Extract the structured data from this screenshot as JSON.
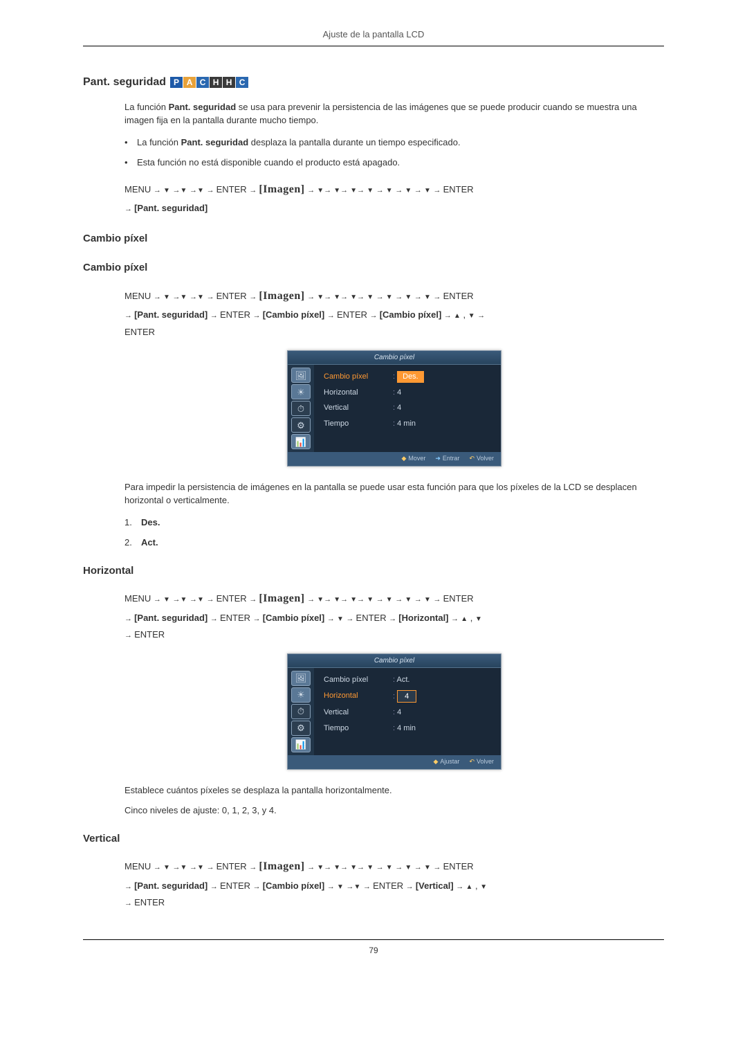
{
  "page": {
    "header": "Ajuste de la pantalla LCD",
    "number": "79"
  },
  "badges": {
    "items": [
      "P",
      "A",
      "C",
      "H",
      "H",
      "C"
    ],
    "colors": [
      "#1e5aa8",
      "#e8a23a",
      "#2a68b0",
      "#3a3a3a",
      "#3a3a3a",
      "#2a68b0"
    ]
  },
  "sec_pant": {
    "title": "Pant. seguridad",
    "intro": "La función Pant. seguridad se usa para prevenir la persistencia de las imágenes que se puede producir cuando se muestra una imagen fija en la pantalla durante mucho tiempo.",
    "intro_bold": "Pant. seguridad",
    "bullet1_pre": "La función ",
    "bullet1_bold": "Pant. seguridad",
    "bullet1_post": " desplaza la pantalla durante un tiempo especificado.",
    "bullet2": "Esta función no está disponible cuando el producto está apagado.",
    "nav": {
      "menu": "MENU",
      "enter": "ENTER",
      "imagen": "[Imagen]",
      "pant": "[Pant. seguridad]"
    }
  },
  "sec_cambio": {
    "title1": "Cambio píxel",
    "title2": "Cambio píxel",
    "nav": {
      "menu": "MENU",
      "enter": "ENTER",
      "imagen": "[Imagen]",
      "pant": "[Pant. seguridad]",
      "cambio1": "[Cambio píxel]",
      "cambio2": "[Cambio píxel]"
    },
    "osd": {
      "title": "Cambio píxel",
      "rows": [
        {
          "lbl": "Cambio píxel",
          "val": "Des.",
          "hl": true,
          "sel": true
        },
        {
          "lbl": "Horizontal",
          "val": "4"
        },
        {
          "lbl": "Vertical",
          "val": "4"
        },
        {
          "lbl": "Tiempo",
          "val": "4 min"
        }
      ],
      "foot": {
        "move": "Mover",
        "enter": "Entrar",
        "return": "Volver"
      }
    },
    "after": "Para impedir la persistencia de imágenes en la pantalla se puede usar esta función para que los píxeles de la LCD se desplacen horizontal o verticalmente.",
    "opt1": "Des.",
    "opt2": "Act."
  },
  "sec_horiz": {
    "title": "Horizontal",
    "nav": {
      "menu": "MENU",
      "enter": "ENTER",
      "imagen": "[Imagen]",
      "pant": "[Pant. seguridad]",
      "cambio": "[Cambio píxel]",
      "horiz": "[Horizontal]"
    },
    "osd": {
      "title": "Cambio píxel",
      "rows": [
        {
          "lbl": "Cambio píxel",
          "val": "Act."
        },
        {
          "lbl": "Horizontal",
          "val": "4",
          "hl": true,
          "spinner": true
        },
        {
          "lbl": "Vertical",
          "val": "4"
        },
        {
          "lbl": "Tiempo",
          "val": "4 min"
        }
      ],
      "foot": {
        "adjust": "Ajustar",
        "return": "Volver"
      }
    },
    "after1": "Establece cuántos píxeles se desplaza la pantalla horizontalmente.",
    "after2": "Cinco niveles de ajuste: 0, 1, 2, 3, y 4."
  },
  "sec_vert": {
    "title": "Vertical",
    "nav": {
      "menu": "MENU",
      "enter": "ENTER",
      "imagen": "[Imagen]",
      "pant": "[Pant. seguridad]",
      "cambio": "[Cambio píxel]",
      "vert": "[Vertical]"
    }
  }
}
